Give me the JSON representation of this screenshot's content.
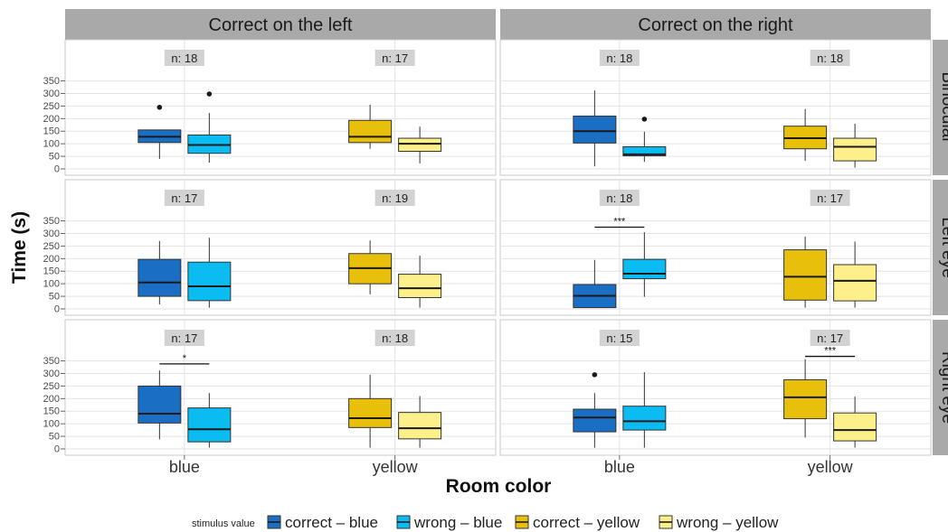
{
  "chart_data": {
    "type": "boxplot",
    "ylabel": "Time (s)",
    "xlabel": "Room color",
    "ylim": [
      0,
      350
    ],
    "y_ticks": [
      0,
      50,
      100,
      150,
      200,
      250,
      300,
      350
    ],
    "x_categories": [
      "blue",
      "yellow"
    ],
    "facet_columns": [
      "Correct on the left",
      "Correct on the right"
    ],
    "facet_rows": [
      "Binocular",
      "Left eye",
      "Right eye"
    ],
    "legend": {
      "title": "stimulus value",
      "placement": "bottom",
      "entries": [
        {
          "label": "correct – blue",
          "color": "#1a6fc4"
        },
        {
          "label": "wrong – blue",
          "color": "#0bbcf2"
        },
        {
          "label": "correct – yellow",
          "color": "#e8c00c"
        },
        {
          "label": "wrong – yellow",
          "color": "#fdf08a"
        }
      ]
    },
    "panels": [
      {
        "row": 0,
        "col": 0,
        "n_labels": [
          "n: 18",
          "n: 17"
        ],
        "sig": [],
        "boxes": [
          {
            "series": 0,
            "cat": 0,
            "min": 40,
            "q1": 105,
            "median": 128,
            "q3": 155,
            "max": 155,
            "outliers": [
              245
            ]
          },
          {
            "series": 1,
            "cat": 0,
            "min": 25,
            "q1": 62,
            "median": 95,
            "q3": 135,
            "max": 222,
            "outliers": [
              298
            ]
          },
          {
            "series": 2,
            "cat": 1,
            "min": 80,
            "q1": 105,
            "median": 128,
            "q3": 193,
            "max": 255,
            "outliers": []
          },
          {
            "series": 3,
            "cat": 1,
            "min": 22,
            "q1": 70,
            "median": 100,
            "q3": 122,
            "max": 168,
            "outliers": []
          }
        ]
      },
      {
        "row": 0,
        "col": 1,
        "n_labels": [
          "n: 18",
          "n: 18"
        ],
        "sig": [],
        "boxes": [
          {
            "series": 0,
            "cat": 0,
            "min": 10,
            "q1": 103,
            "median": 150,
            "q3": 210,
            "max": 312,
            "outliers": []
          },
          {
            "series": 1,
            "cat": 0,
            "min": 28,
            "q1": 52,
            "median": 58,
            "q3": 88,
            "max": 148,
            "outliers": [
              198
            ]
          },
          {
            "series": 2,
            "cat": 1,
            "min": 32,
            "q1": 80,
            "median": 122,
            "q3": 170,
            "max": 238,
            "outliers": []
          },
          {
            "series": 3,
            "cat": 1,
            "min": 5,
            "q1": 32,
            "median": 88,
            "q3": 122,
            "max": 180,
            "outliers": []
          }
        ]
      },
      {
        "row": 1,
        "col": 0,
        "n_labels": [
          "n: 17",
          "n: 19"
        ],
        "sig": [],
        "boxes": [
          {
            "series": 0,
            "cat": 0,
            "min": 18,
            "q1": 50,
            "median": 105,
            "q3": 197,
            "max": 270,
            "outliers": []
          },
          {
            "series": 1,
            "cat": 0,
            "min": 5,
            "q1": 33,
            "median": 90,
            "q3": 186,
            "max": 283,
            "outliers": []
          },
          {
            "series": 2,
            "cat": 1,
            "min": 58,
            "q1": 100,
            "median": 162,
            "q3": 220,
            "max": 272,
            "outliers": []
          },
          {
            "series": 3,
            "cat": 1,
            "min": 5,
            "q1": 45,
            "median": 82,
            "q3": 138,
            "max": 212,
            "outliers": []
          }
        ]
      },
      {
        "row": 1,
        "col": 1,
        "n_labels": [
          "n: 18",
          "n: 17"
        ],
        "sig": [
          {
            "text": "***",
            "cat": 0,
            "y": 325
          }
        ],
        "boxes": [
          {
            "series": 0,
            "cat": 0,
            "min": 5,
            "q1": 5,
            "median": 52,
            "q3": 97,
            "max": 195,
            "outliers": []
          },
          {
            "series": 1,
            "cat": 0,
            "min": 48,
            "q1": 120,
            "median": 140,
            "q3": 197,
            "max": 305,
            "outliers": []
          },
          {
            "series": 2,
            "cat": 1,
            "min": 5,
            "q1": 35,
            "median": 128,
            "q3": 235,
            "max": 287,
            "outliers": []
          },
          {
            "series": 3,
            "cat": 1,
            "min": 5,
            "q1": 32,
            "median": 112,
            "q3": 176,
            "max": 268,
            "outliers": []
          }
        ]
      },
      {
        "row": 2,
        "col": 0,
        "n_labels": [
          "n: 17",
          "n: 18"
        ],
        "sig": [
          {
            "text": "*",
            "cat": 0,
            "y": 338
          }
        ],
        "boxes": [
          {
            "series": 0,
            "cat": 0,
            "min": 38,
            "q1": 103,
            "median": 140,
            "q3": 250,
            "max": 312,
            "outliers": []
          },
          {
            "series": 1,
            "cat": 0,
            "min": 5,
            "q1": 28,
            "median": 78,
            "q3": 163,
            "max": 222,
            "outliers": []
          },
          {
            "series": 2,
            "cat": 1,
            "min": 5,
            "q1": 85,
            "median": 122,
            "q3": 200,
            "max": 295,
            "outliers": []
          },
          {
            "series": 3,
            "cat": 1,
            "min": 5,
            "q1": 40,
            "median": 82,
            "q3": 145,
            "max": 210,
            "outliers": []
          }
        ]
      },
      {
        "row": 2,
        "col": 1,
        "n_labels": [
          "n: 15",
          "n: 17"
        ],
        "sig": [
          {
            "text": "***",
            "cat": 1,
            "y": 368
          }
        ],
        "boxes": [
          {
            "series": 0,
            "cat": 0,
            "min": 5,
            "q1": 68,
            "median": 125,
            "q3": 158,
            "max": 222,
            "outliers": [
              295
            ]
          },
          {
            "series": 1,
            "cat": 0,
            "min": 5,
            "q1": 75,
            "median": 110,
            "q3": 170,
            "max": 305,
            "outliers": []
          },
          {
            "series": 2,
            "cat": 1,
            "min": 45,
            "q1": 120,
            "median": 205,
            "q3": 275,
            "max": 357,
            "outliers": []
          },
          {
            "series": 3,
            "cat": 1,
            "min": 5,
            "q1": 32,
            "median": 75,
            "q3": 143,
            "max": 208,
            "outliers": []
          }
        ]
      }
    ]
  }
}
